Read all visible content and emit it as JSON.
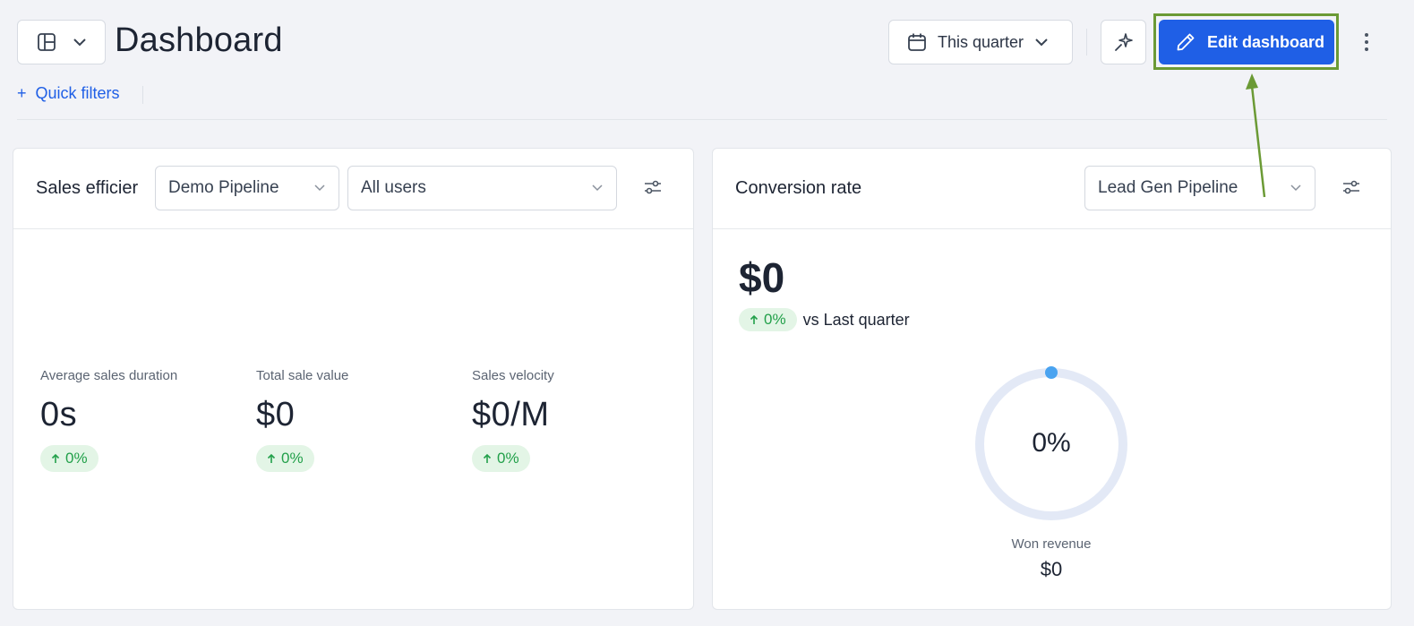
{
  "header": {
    "title": "Dashboard",
    "date_filter": "This quarter",
    "edit_label": "Edit dashboard",
    "quick_filters_label": "Quick filters",
    "quick_filters_plus": "+"
  },
  "sales_card": {
    "title": "Sales efficier",
    "pipeline": "Demo Pipeline",
    "users": "All users",
    "metrics": [
      {
        "label": "Average sales duration",
        "value": "0s",
        "change": "0%"
      },
      {
        "label": "Total sale value",
        "value": "$0",
        "change": "0%"
      },
      {
        "label": "Sales velocity",
        "value": "$0/M",
        "change": "0%"
      }
    ]
  },
  "conversion_card": {
    "title": "Conversion rate",
    "pipeline": "Lead Gen Pipeline",
    "big_value": "$0",
    "change": "0%",
    "vs_text": "vs Last quarter",
    "donut_percent": "0%",
    "donut_fraction": 0,
    "won_label": "Won revenue",
    "won_value": "$0"
  },
  "icons": {
    "layout": "layout-icon",
    "calendar": "calendar-icon",
    "sparkle": "sparkle-icon",
    "pencil": "pencil-icon",
    "kebab": "kebab-icon",
    "filter": "filter-settings-icon",
    "arrow_up": "arrow-up-icon"
  },
  "colors": {
    "primary": "#1f5fe6",
    "highlight": "#6b9a35",
    "positive": "#22a04a",
    "positive_bg": "#e3f5e6",
    "donut_track": "#e3e9f6",
    "donut_dot": "#4aa3f0"
  }
}
